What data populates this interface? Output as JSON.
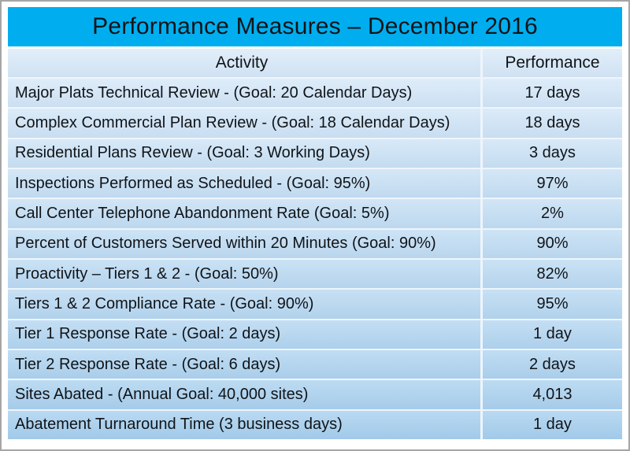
{
  "chart_data": {
    "type": "table",
    "title": "Performance Measures – December 2016",
    "columns": [
      "Activity",
      "Performance"
    ],
    "rows": [
      {
        "activity": "Major Plats Technical Review - (Goal: 20 Calendar Days)",
        "performance": "17 days"
      },
      {
        "activity": "Complex Commercial Plan Review - (Goal: 18 Calendar Days)",
        "performance": "18 days"
      },
      {
        "activity": "Residential Plans Review - (Goal: 3 Working Days)",
        "performance": "3 days"
      },
      {
        "activity": "Inspections Performed as Scheduled - (Goal: 95%)",
        "performance": "97%"
      },
      {
        "activity": "Call Center Telephone Abandonment Rate (Goal: 5%)",
        "performance": "2%"
      },
      {
        "activity": "Percent of Customers Served within 20 Minutes (Goal: 90%)",
        "performance": "90%"
      },
      {
        "activity": "Proactivity – Tiers 1 & 2 - (Goal: 50%)",
        "performance": "82%"
      },
      {
        "activity": "Tiers 1 & 2 Compliance Rate - (Goal: 90%)",
        "performance": "95%"
      },
      {
        "activity": "Tier 1 Response Rate - (Goal: 2 days)",
        "performance": "1 day"
      },
      {
        "activity": "Tier 2 Response Rate - (Goal: 6 days)",
        "performance": "2 days"
      },
      {
        "activity": "Sites Abated - (Annual Goal: 40,000 sites)",
        "performance": "4,013"
      },
      {
        "activity": "Abatement Turnaround Time (3 business days)",
        "performance": "1 day"
      }
    ],
    "layout": "two-column table, activity left-aligned, performance centered, grid on"
  },
  "colors": {
    "title_bar": "#00aeef",
    "row_gradient_top": "#dcebf9",
    "row_gradient_bottom": "#a8d0ee",
    "separator": "#eef5fc",
    "text": "#101418",
    "outer_border": "#a6a6a6"
  }
}
